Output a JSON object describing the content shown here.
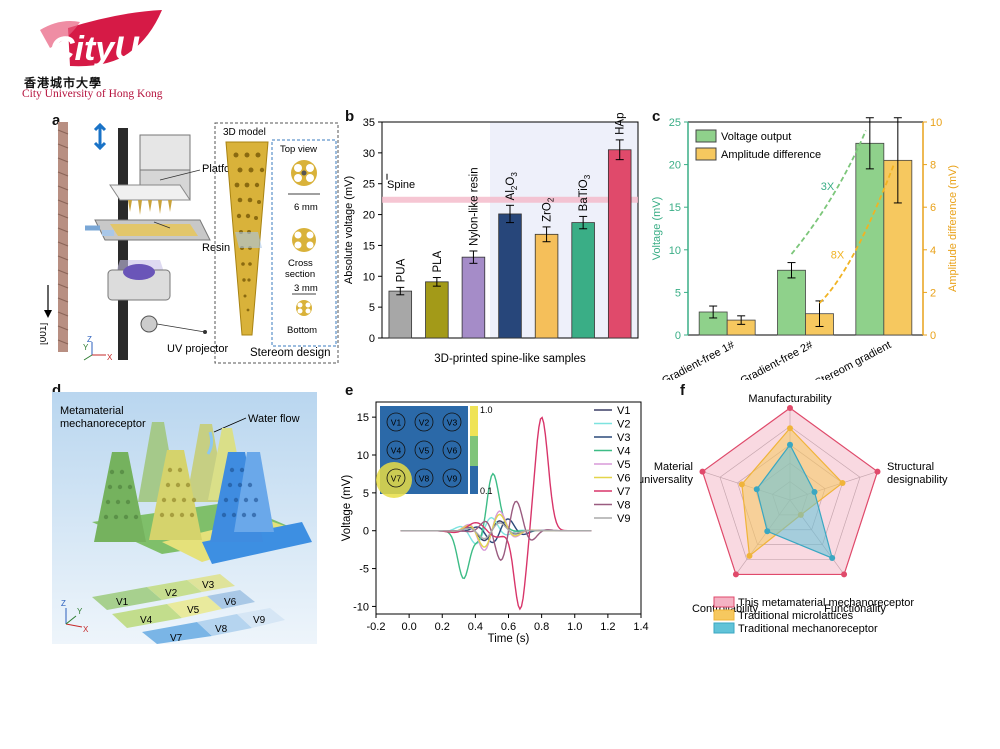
{
  "logo": {
    "brand": "CityU",
    "chinese": "香港城市大學",
    "english": "City University of Hong Kong"
  },
  "colors": {
    "logo_red": "#d61a46",
    "pua": "#a7a7a7",
    "pla": "#a39a18",
    "nylon": "#a58cc8",
    "al2o3": "#27467a",
    "zro2": "#f5bf5a",
    "batio3": "#3aae86",
    "hap": "#e04a6b",
    "green": "#8fd18b",
    "yellow": "#f6c85f",
    "pink": "#f4b3c4",
    "blue": "#61c3d8"
  },
  "panel_a": {
    "label": "a",
    "callouts": {
      "platform": "Platform",
      "resin": "Resin",
      "uv": "UV projector",
      "axis": "[001]",
      "model": "3D model",
      "top_view": "Top view",
      "six_mm": "6 mm",
      "cross_section": "Cross\nsection",
      "three_mm": "3 mm",
      "bottom": "Bottom",
      "stereom": "Stereom design"
    },
    "axes": {
      "z": "Z",
      "y": "Y",
      "x": "X"
    }
  },
  "panel_b": {
    "label": "b",
    "chart_data": {
      "type": "bar",
      "categories": [
        "PUA",
        "PLA",
        "Nylon-like resin",
        "Al2O3",
        "ZrO2",
        "BaTiO3",
        "HAp"
      ],
      "category_labels": [
        [
          "PUA",
          ""
        ],
        [
          "PLA",
          ""
        ],
        [
          "Nylon-like resin",
          ""
        ],
        [
          "Al",
          "2",
          "O",
          "3"
        ],
        [
          "ZrO",
          "2"
        ],
        [
          "BaTiO",
          "3"
        ],
        [
          "HAp"
        ]
      ],
      "values": [
        7.6,
        9.1,
        13.1,
        20.1,
        16.8,
        18.7,
        30.5
      ],
      "errors": [
        0.6,
        0.7,
        1.0,
        1.4,
        1.2,
        1.0,
        1.6
      ],
      "spine_level": 22.4,
      "spine_label": "Spine",
      "ylabel": "Absolute voltage (mV)",
      "xlabel": "3D-printed spine-like samples",
      "ylim": [
        0,
        35
      ],
      "yticks": [
        0,
        5,
        10,
        15,
        20,
        25,
        30,
        35
      ]
    }
  },
  "panel_c": {
    "label": "c",
    "chart_data": {
      "type": "bar",
      "categories": [
        "Gradient-free 1#",
        "Gradient-free 2#",
        "Stereom gradient"
      ],
      "series": [
        {
          "name": "Voltage output",
          "values": [
            2.7,
            7.6,
            22.5
          ],
          "errors": [
            0.7,
            0.9,
            3.0
          ],
          "axis": "left"
        },
        {
          "name": "Amplitude difference",
          "values": [
            0.7,
            1.0,
            8.2
          ],
          "errors": [
            0.2,
            0.6,
            2.0
          ],
          "axis": "right"
        }
      ],
      "ylabel_left": "Voltage (mV)",
      "ylabel_right": "Amplitude difference (mV)",
      "ylim_left": [
        0,
        25
      ],
      "yticks_left": [
        0,
        5,
        10,
        15,
        20,
        25
      ],
      "ylim_right": [
        0,
        10
      ],
      "yticks_right": [
        0,
        2,
        4,
        6,
        8,
        10
      ],
      "annotations": [
        "3X",
        "8X"
      ]
    }
  },
  "panel_d": {
    "label": "d",
    "title": "Metamaterial\nmechanoreceptor",
    "water_flow": "Water flow",
    "cells": [
      "V1",
      "V2",
      "V3",
      "V4",
      "V5",
      "V6",
      "V7",
      "V8",
      "V9"
    ],
    "axes": {
      "z": "Z",
      "y": "Y",
      "x": "X"
    }
  },
  "panel_e": {
    "label": "e",
    "chart_data": {
      "type": "line",
      "xlabel": "Time (s)",
      "ylabel": "Voltage (mV)",
      "xlim": [
        -0.2,
        1.4
      ],
      "ylim": [
        -11,
        17
      ],
      "xticks": [
        -0.2,
        0.0,
        0.2,
        0.4,
        0.6,
        0.8,
        1.0,
        1.2,
        1.4
      ],
      "yticks": [
        -10,
        -5,
        0,
        5,
        10,
        15
      ],
      "series": [
        {
          "name": "V1",
          "color": "#3b3f66",
          "peak_time": 0.5,
          "amp": 1.5
        },
        {
          "name": "V2",
          "color": "#7de3df",
          "peak_time": 0.45,
          "amp": 2.0
        },
        {
          "name": "V3",
          "color": "#2c4a7a",
          "peak_time": 0.55,
          "amp": 1.8
        },
        {
          "name": "V4",
          "color": "#3dbc86",
          "peak_time": 0.42,
          "amp": 7.5
        },
        {
          "name": "V5",
          "color": "#d89ad8",
          "peak_time": 0.5,
          "amp": 3.0
        },
        {
          "name": "V6",
          "color": "#e3d54a",
          "peak_time": 0.5,
          "amp": 2.5
        },
        {
          "name": "V7",
          "color": "#d8356a",
          "peak_time": 0.7,
          "amp": 15.0
        },
        {
          "name": "V8",
          "color": "#9a5c80",
          "peak_time": 0.6,
          "amp": 4.5
        },
        {
          "name": "V9",
          "color": "#aaaaaa",
          "peak_time": 0.5,
          "amp": 1.2
        }
      ],
      "inset": {
        "cells": [
          "V1",
          "V2",
          "V3",
          "V4",
          "V5",
          "V6",
          "V7",
          "V8",
          "V9"
        ],
        "scale_max": "1.0",
        "scale_min": "0.1"
      }
    }
  },
  "panel_f": {
    "label": "f",
    "chart_data": {
      "type": "radar",
      "axes": [
        "Manufacturability",
        "Structural\ndesignability",
        "Functionality",
        "Controllability",
        "Material\nuniversality"
      ],
      "series": [
        {
          "name": "This metamaterial mechanoreceptor",
          "values": [
            1.0,
            1.0,
            1.0,
            1.0,
            1.0
          ]
        },
        {
          "name": "Traditional microlattices",
          "values": [
            0.78,
            0.6,
            0.2,
            0.75,
            0.55
          ]
        },
        {
          "name": "Traditional mechanoreceptor",
          "values": [
            0.6,
            0.28,
            0.78,
            0.42,
            0.38
          ]
        }
      ]
    }
  }
}
